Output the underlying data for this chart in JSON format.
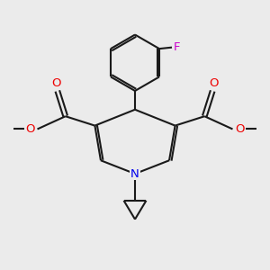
{
  "bg_color": "#ebebeb",
  "bond_color": "#1a1a1a",
  "N_color": "#0000ee",
  "O_color": "#ee0000",
  "F_color": "#cc00cc",
  "lw": 1.5,
  "xlim": [
    0,
    10
  ],
  "ylim": [
    0,
    10
  ]
}
